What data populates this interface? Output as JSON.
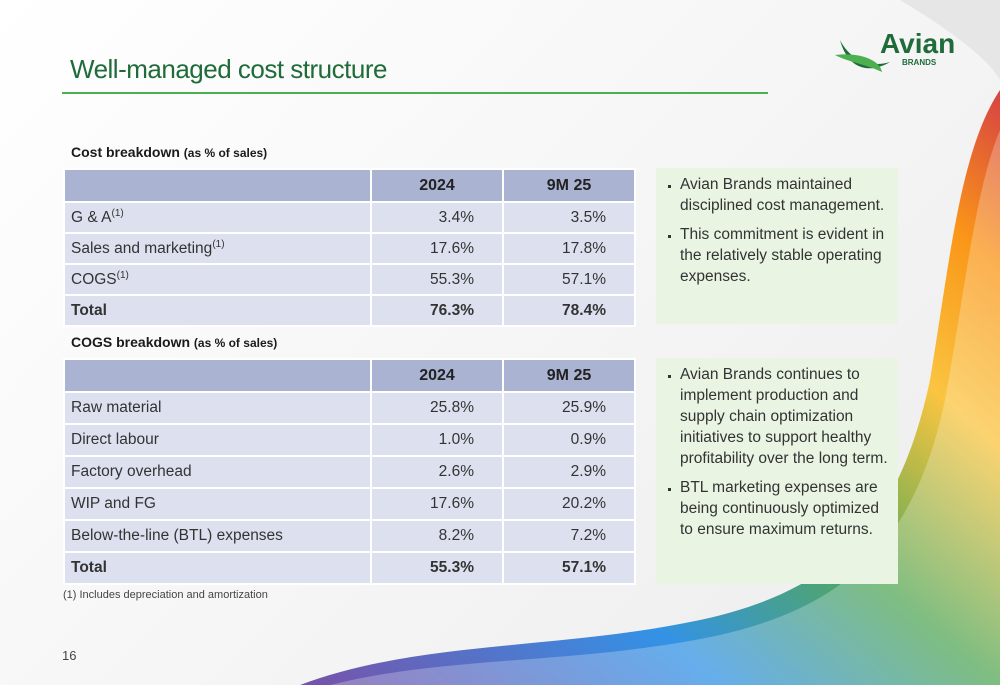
{
  "header": {
    "title": "Well-managed cost structure",
    "logo": {
      "name": "Avian",
      "sub": "BRANDS"
    }
  },
  "tables": [
    {
      "caption": "Cost breakdown",
      "caption_note": "(as % of sales)",
      "columns": [
        "2024",
        "9M 25"
      ],
      "rows": [
        {
          "label": "G & A",
          "sup": "(1)",
          "values": [
            "3.4%",
            "3.5%"
          ]
        },
        {
          "label": "Sales and marketing",
          "sup": "(1)",
          "values": [
            "17.6%",
            "17.8%"
          ]
        },
        {
          "label": "COGS",
          "sup": "(1)",
          "values": [
            "55.3%",
            "57.1%"
          ]
        },
        {
          "label": "Total",
          "values": [
            "76.3%",
            "78.4%"
          ],
          "bold": true
        }
      ],
      "bullets": [
        "Avian Brands maintained disciplined cost management.",
        "This commitment is evident in the relatively stable operating expenses."
      ]
    },
    {
      "caption": "COGS breakdown",
      "caption_note": "(as % of sales)",
      "columns": [
        "2024",
        "9M 25"
      ],
      "rows": [
        {
          "label": "Raw material",
          "values": [
            "25.8%",
            "25.9%"
          ]
        },
        {
          "label": "Direct labour",
          "values": [
            "1.0%",
            "0.9%"
          ]
        },
        {
          "label": "Factory overhead",
          "values": [
            "2.6%",
            "2.9%"
          ]
        },
        {
          "label": "WIP and FG",
          "values": [
            "17.6%",
            "20.2%"
          ]
        },
        {
          "label": "Below-the-line (BTL) expenses",
          "values": [
            "8.2%",
            "7.2%"
          ]
        },
        {
          "label": "Total",
          "values": [
            "55.3%",
            "57.1%"
          ],
          "bold": true
        }
      ],
      "bullets": [
        "Avian Brands continues to implement production and supply chain optimization initiatives to support healthy profitability over the long term.",
        "BTL marketing expenses are being continuously optimized to ensure maximum returns."
      ]
    }
  ],
  "footnote": "(1) Includes depreciation and amortization",
  "page_number": "16"
}
